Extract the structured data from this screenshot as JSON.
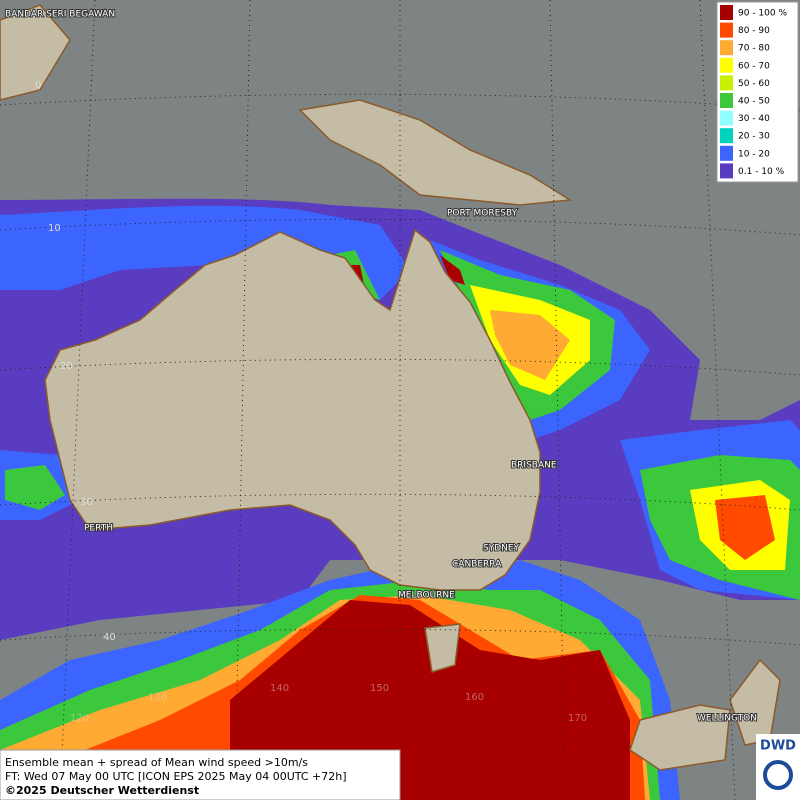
{
  "map": {
    "legend": [
      {
        "label": "90 - 100 %",
        "color": "#a80000"
      },
      {
        "label": "80 - 90",
        "color": "#ff4a00"
      },
      {
        "label": "70 - 80",
        "color": "#ffaa33"
      },
      {
        "label": "60 - 70",
        "color": "#ffff00"
      },
      {
        "label": "50 - 60",
        "color": "#c8f000"
      },
      {
        "label": "40 - 50",
        "color": "#3cc83c"
      },
      {
        "label": "30 - 40",
        "color": "#90ffff"
      },
      {
        "label": "20 - 30",
        "color": "#00d2c0"
      },
      {
        "label": "10 - 20",
        "color": "#3c64ff"
      },
      {
        "label": "0.1 - 10 %",
        "color": "#5a3cc0"
      }
    ],
    "cities": [
      "BANDAR SERI BEGAWAN",
      "PORT MORESBY",
      "BRISBANE",
      "SYDNEY",
      "CANBERRA",
      "MELBOURNE",
      "PERTH",
      "WELLINGTON"
    ],
    "latitudes": [
      0,
      10,
      20,
      30,
      40
    ],
    "longitudes": [
      120,
      130,
      140,
      150,
      160,
      170
    ],
    "footer": [
      "Ensemble mean + spread of Mean wind speed >10m/s",
      "FT: Wed 07 May 00 UTC [ICON EPS 2025 May 04 00UTC +72h]",
      "©2025 Deutscher Wetterdienst"
    ],
    "logo": "DWD"
  }
}
